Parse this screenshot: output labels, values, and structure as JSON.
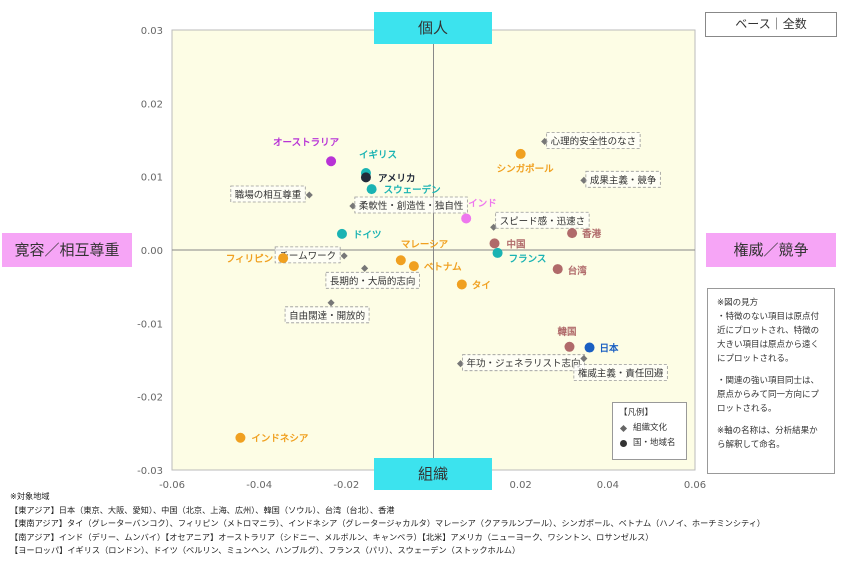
{
  "chart_data": {
    "type": "scatter",
    "xlim": [
      -0.06,
      0.06
    ],
    "ylim": [
      -0.03,
      0.03
    ],
    "x_ticks": [
      "-0.06",
      "-0.04",
      "-0.02",
      "0",
      "0.02",
      "0.04",
      "0.06"
    ],
    "y_ticks": [
      "0.03",
      "0.02",
      "0.01",
      "0.00",
      "-0.01",
      "-0.02",
      "-0.03"
    ],
    "grid": false,
    "background_color": "#fdfde5",
    "axis_labels": {
      "top": "個人",
      "bottom": "組織",
      "left": "寛容／相互尊重",
      "right": "権威／競争"
    },
    "series": [
      {
        "name": "組織文化",
        "marker": "diamond",
        "points": [
          {
            "label": "心理的安全性のなさ",
            "x": 0.0255,
            "y": 0.0148
          },
          {
            "label": "成果主義・競争",
            "x": 0.0345,
            "y": 0.0095
          },
          {
            "label": "職場の相互尊重",
            "x": -0.0285,
            "y": 0.0075
          },
          {
            "label": "柔軟性・創造性・独自性",
            "x": -0.0185,
            "y": 0.006
          },
          {
            "label": "スピード感・迅速さ",
            "x": 0.0138,
            "y": 0.0031
          },
          {
            "label": "チームワーク",
            "x": -0.0205,
            "y": -0.0008
          },
          {
            "label": "長期的・大局的志向",
            "x": -0.0158,
            "y": -0.0025
          },
          {
            "label": "自由闊達・開放的",
            "x": -0.0235,
            "y": -0.0072
          },
          {
            "label": "年功・ジェネラリスト志向",
            "x": 0.0062,
            "y": -0.0155
          },
          {
            "label": "権威主義・責任回避",
            "x": 0.0345,
            "y": -0.0148
          }
        ]
      },
      {
        "name": "国・地域名",
        "marker": "circle",
        "points": [
          {
            "label": "オーストラリア",
            "x": -0.0235,
            "y": 0.0121,
            "color": "#b833d6"
          },
          {
            "label": "イギリス",
            "x": -0.0155,
            "y": 0.0105,
            "color": "#1ab3b3"
          },
          {
            "label": "アメリカ",
            "x": -0.0155,
            "y": 0.0099,
            "color": "#222a3a"
          },
          {
            "label": "スウェーデン",
            "x": -0.0142,
            "y": 0.0083,
            "color": "#1ab3b3"
          },
          {
            "label": "インド",
            "x": 0.0075,
            "y": 0.0043,
            "color": "#ee77ee"
          },
          {
            "label": "シンガポール",
            "x": 0.02,
            "y": 0.0131,
            "color": "#f0a020"
          },
          {
            "label": "ドイツ",
            "x": -0.021,
            "y": 0.0022,
            "color": "#1ab3b3"
          },
          {
            "label": "中国",
            "x": 0.014,
            "y": 0.0009,
            "color": "#b06a6a"
          },
          {
            "label": "フランス",
            "x": 0.0147,
            "y": -0.0004,
            "color": "#1ab3b3"
          },
          {
            "label": "香港",
            "x": 0.0318,
            "y": 0.0023,
            "color": "#b06a6a"
          },
          {
            "label": "台湾",
            "x": 0.0285,
            "y": -0.0026,
            "color": "#b06a6a"
          },
          {
            "label": "フィリピン",
            "x": -0.0345,
            "y": -0.0011,
            "color": "#f0a020"
          },
          {
            "label": "マレーシア",
            "x": -0.0075,
            "y": -0.0014,
            "color": "#f0a020"
          },
          {
            "label": "ベトナム",
            "x": -0.0045,
            "y": -0.0022,
            "color": "#f0a020"
          },
          {
            "label": "タイ",
            "x": 0.0065,
            "y": -0.0047,
            "color": "#f0a020"
          },
          {
            "label": "韓国",
            "x": 0.0312,
            "y": -0.0132,
            "color": "#b06a6a"
          },
          {
            "label": "日本",
            "x": 0.0358,
            "y": -0.0133,
            "color": "#1a5fc2"
          },
          {
            "label": "インドネシア",
            "x": -0.0443,
            "y": -0.0256,
            "color": "#f0a020"
          }
        ]
      }
    ]
  },
  "base_label": "ベース｜全数",
  "notes": {
    "title": "※図の見方",
    "lines": [
      "・特徴のない項目は原点付近にプロットされ、特徴の大きい項目は原点から遠くにプロットされる。",
      "・関連の強い項目同士は、原点からみて同一方向にプロットされる。",
      "※軸の名称は、分析結果から解釈して命名。"
    ]
  },
  "legend": {
    "title": "【凡例】",
    "items": [
      "組織文化",
      "国・地域名"
    ]
  },
  "footer": {
    "title": "※対象地域",
    "lines": [
      "【東アジア】日本（東京、大阪、愛知）、中国（北京、上海、広州）、韓国（ソウル）、台湾（台北）、香港",
      "【東南アジア】タイ（グレーターバンコク）、フィリピン（メトロマニラ）、インドネシア（グレータージャカルタ）マレーシア（クアラルンプール）、シンガポール、ベトナム（ハノイ、ホーチミンシティ）",
      "【南アジア】インド（デリー、ムンバイ）【オセアニア】オーストラリア（シドニー、メルボルン、キャンベラ）【北米】アメリカ（ニューヨーク、ワシントン、ロサンゼルス）",
      "【ヨーロッパ】イギリス（ロンドン）、ドイツ（ベルリン、ミュンヘン、ハンブルグ）、フランス（パリ）、スウェーデン（ストックホルム）"
    ]
  }
}
